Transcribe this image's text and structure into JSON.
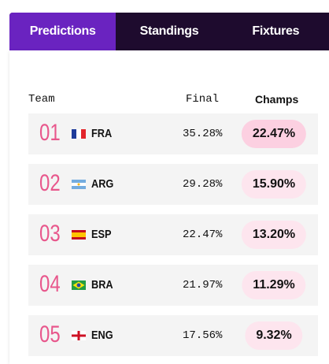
{
  "tabs": [
    "Predictions",
    "Standings",
    "Fixtures"
  ],
  "table": {
    "columns": [
      "Team",
      "Final",
      "Champs"
    ],
    "rows": [
      [
        "01",
        "FRA",
        "35.28%",
        "22.47%"
      ],
      [
        "02",
        "ARG",
        "29.28%",
        "15.90%"
      ],
      [
        "03",
        "ESP",
        "22.47%",
        "13.20%"
      ],
      [
        "04",
        "BRA",
        "21.97%",
        "11.29%"
      ],
      [
        "05",
        "ENG",
        "17.56%",
        "9.32%"
      ]
    ]
  }
}
